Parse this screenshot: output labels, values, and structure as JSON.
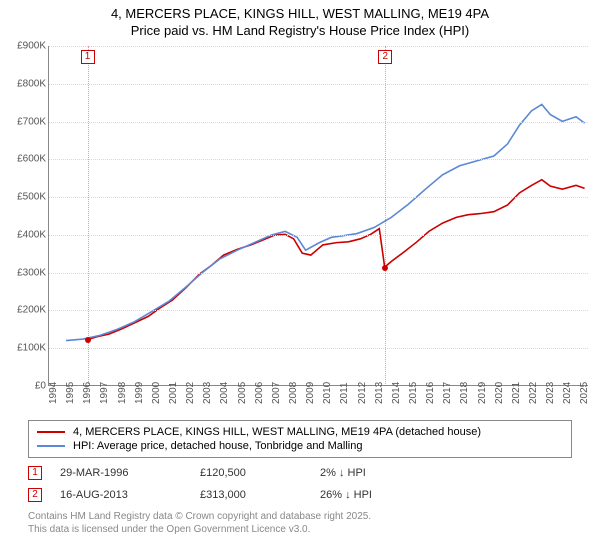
{
  "title_line1": "4, MERCERS PLACE, KINGS HILL, WEST MALLING, ME19 4PA",
  "title_line2": "Price paid vs. HM Land Registry's House Price Index (HPI)",
  "chart": {
    "type": "line",
    "background_color": "#ffffff",
    "grid_color": "#d8d8d8",
    "xlim": [
      1994,
      2025.5
    ],
    "ylim": [
      0,
      900000
    ],
    "x_ticks": [
      1994,
      1995,
      1996,
      1997,
      1998,
      1999,
      2000,
      2001,
      2002,
      2003,
      2004,
      2005,
      2006,
      2007,
      2008,
      2009,
      2010,
      2011,
      2012,
      2013,
      2014,
      2015,
      2016,
      2017,
      2018,
      2019,
      2020,
      2021,
      2022,
      2023,
      2024,
      2025
    ],
    "y_ticks": [
      0,
      100000,
      200000,
      300000,
      400000,
      500000,
      600000,
      700000,
      800000,
      900000
    ],
    "y_tick_labels": [
      "£0",
      "£100K",
      "£200K",
      "£300K",
      "£400K",
      "£500K",
      "£600K",
      "£700K",
      "£800K",
      "£900K"
    ],
    "series": [
      {
        "name": "price_paid",
        "label": "4, MERCERS PLACE, KINGS HILL, WEST MALLING, ME19 4PA (detached house)",
        "color": "#cc0000",
        "line_width": 1.6,
        "data": [
          [
            1996.25,
            120500
          ],
          [
            1996.8,
            128000
          ],
          [
            1997.5,
            135000
          ],
          [
            1998.2,
            148000
          ],
          [
            1999.0,
            165000
          ],
          [
            1999.8,
            182000
          ],
          [
            2000.5,
            205000
          ],
          [
            2001.2,
            225000
          ],
          [
            2002.0,
            258000
          ],
          [
            2002.8,
            295000
          ],
          [
            2003.5,
            318000
          ],
          [
            2004.2,
            345000
          ],
          [
            2005.0,
            360000
          ],
          [
            2005.8,
            372000
          ],
          [
            2006.5,
            385000
          ],
          [
            2007.2,
            398000
          ],
          [
            2007.8,
            400000
          ],
          [
            2008.3,
            388000
          ],
          [
            2008.8,
            350000
          ],
          [
            2009.3,
            345000
          ],
          [
            2010.0,
            372000
          ],
          [
            2010.8,
            378000
          ],
          [
            2011.5,
            380000
          ],
          [
            2012.2,
            388000
          ],
          [
            2012.8,
            400000
          ],
          [
            2013.3,
            415000
          ],
          [
            2013.62,
            313000
          ],
          [
            2014.0,
            328000
          ],
          [
            2014.8,
            355000
          ],
          [
            2015.5,
            380000
          ],
          [
            2016.2,
            408000
          ],
          [
            2017.0,
            430000
          ],
          [
            2017.8,
            445000
          ],
          [
            2018.5,
            452000
          ],
          [
            2019.2,
            455000
          ],
          [
            2020.0,
            460000
          ],
          [
            2020.8,
            478000
          ],
          [
            2021.5,
            510000
          ],
          [
            2022.2,
            530000
          ],
          [
            2022.8,
            545000
          ],
          [
            2023.3,
            528000
          ],
          [
            2024.0,
            520000
          ],
          [
            2024.8,
            530000
          ],
          [
            2025.3,
            522000
          ]
        ]
      },
      {
        "name": "hpi",
        "label": "HPI: Average price, detached house, Tonbridge and Malling",
        "color": "#5b87d6",
        "line_width": 1.6,
        "data": [
          [
            1995.0,
            118000
          ],
          [
            1996.0,
            122000
          ],
          [
            1997.0,
            132000
          ],
          [
            1998.0,
            148000
          ],
          [
            1999.0,
            168000
          ],
          [
            2000.0,
            195000
          ],
          [
            2001.0,
            222000
          ],
          [
            2002.0,
            260000
          ],
          [
            2003.0,
            300000
          ],
          [
            2004.0,
            335000
          ],
          [
            2005.0,
            358000
          ],
          [
            2006.0,
            378000
          ],
          [
            2007.0,
            398000
          ],
          [
            2007.8,
            408000
          ],
          [
            2008.5,
            392000
          ],
          [
            2009.0,
            358000
          ],
          [
            2009.8,
            378000
          ],
          [
            2010.5,
            392000
          ],
          [
            2011.0,
            395000
          ],
          [
            2012.0,
            402000
          ],
          [
            2013.0,
            418000
          ],
          [
            2014.0,
            445000
          ],
          [
            2015.0,
            480000
          ],
          [
            2016.0,
            520000
          ],
          [
            2017.0,
            558000
          ],
          [
            2018.0,
            582000
          ],
          [
            2019.0,
            595000
          ],
          [
            2020.0,
            608000
          ],
          [
            2020.8,
            640000
          ],
          [
            2021.5,
            690000
          ],
          [
            2022.2,
            728000
          ],
          [
            2022.8,
            745000
          ],
          [
            2023.3,
            718000
          ],
          [
            2024.0,
            700000
          ],
          [
            2024.8,
            712000
          ],
          [
            2025.3,
            695000
          ]
        ]
      }
    ],
    "markers": [
      {
        "id": "1",
        "x": 1996.25,
        "y": 120500,
        "color": "#cc0000"
      },
      {
        "id": "2",
        "x": 2013.62,
        "y": 313000,
        "color": "#cc0000"
      }
    ]
  },
  "legend": {
    "items": [
      {
        "color": "#cc0000",
        "label": "4, MERCERS PLACE, KINGS HILL, WEST MALLING, ME19 4PA (detached house)"
      },
      {
        "color": "#5b87d6",
        "label": "HPI: Average price, detached house, Tonbridge and Malling"
      }
    ]
  },
  "transactions": [
    {
      "marker": "1",
      "date": "29-MAR-1996",
      "price": "£120,500",
      "hpi": "2% ↓ HPI"
    },
    {
      "marker": "2",
      "date": "16-AUG-2013",
      "price": "£313,000",
      "hpi": "26% ↓ HPI"
    }
  ],
  "footer_line1": "Contains HM Land Registry data © Crown copyright and database right 2025.",
  "footer_line2": "This data is licensed under the Open Government Licence v3.0."
}
